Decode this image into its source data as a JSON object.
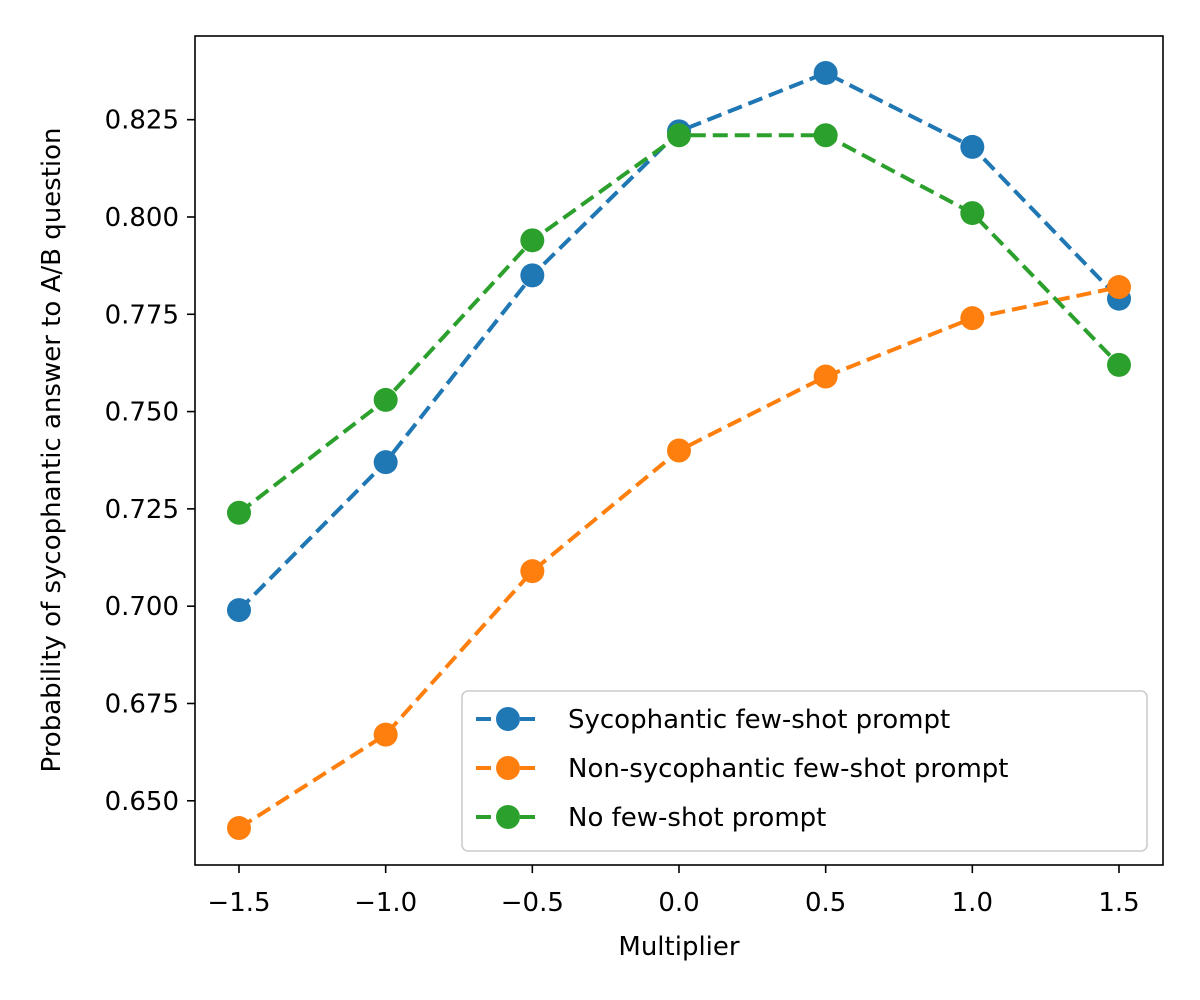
{
  "chart_data": {
    "type": "line",
    "title": "",
    "xlabel": "Multiplier",
    "ylabel": "Probability of sycophantic answer to A/B question",
    "xlim": [
      -1.65,
      1.65
    ],
    "ylim": [
      0.6335,
      0.8465
    ],
    "x": [
      -1.5,
      -1.0,
      -0.5,
      0.0,
      0.5,
      1.0,
      1.5
    ],
    "x_ticks": [
      -1.5,
      -1.0,
      -0.5,
      0.0,
      0.5,
      1.0,
      1.5
    ],
    "x_tick_labels": [
      "−1.5",
      "−1.0",
      "−0.5",
      "0.0",
      "0.5",
      "1.0",
      "1.5"
    ],
    "y_ticks": [
      0.65,
      0.675,
      0.7,
      0.725,
      0.75,
      0.775,
      0.8,
      0.825
    ],
    "y_tick_labels": [
      "0.650",
      "0.675",
      "0.700",
      "0.725",
      "0.750",
      "0.775",
      "0.800",
      "0.825"
    ],
    "grid": false,
    "legend_position": "lower-right",
    "series": [
      {
        "name": "Sycophantic few-shot prompt",
        "color": "#1f77b4",
        "values": [
          0.699,
          0.737,
          0.785,
          0.822,
          0.837,
          0.818,
          0.779
        ]
      },
      {
        "name": "Non-sycophantic few-shot prompt",
        "color": "#ff7f0e",
        "values": [
          0.643,
          0.667,
          0.709,
          0.74,
          0.759,
          0.774,
          0.782
        ]
      },
      {
        "name": "No few-shot prompt",
        "color": "#2ca02c",
        "values": [
          0.724,
          0.753,
          0.794,
          0.821,
          0.821,
          0.801,
          0.762
        ]
      }
    ]
  }
}
